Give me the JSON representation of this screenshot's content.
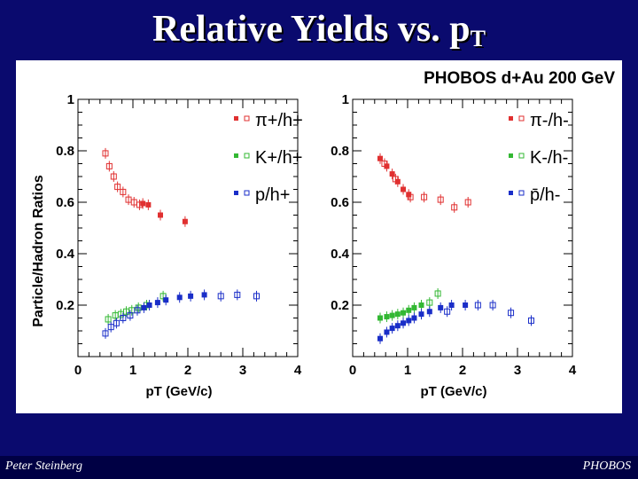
{
  "slide": {
    "title_main": "Relative Yields vs. p",
    "title_sub": "T",
    "footer_left": "Peter Steinberg",
    "footer_right": "PHOBOS"
  },
  "chart_data": {
    "type": "scatter",
    "caption": "PHOBOS d+Au 200 GeV",
    "ylabel": "Particle/Hadron Ratios",
    "panels": [
      {
        "name": "positive",
        "xlabel": "pT (GeV/c)",
        "xlim": [
          0,
          4
        ],
        "ylim": [
          0,
          1
        ],
        "xticks": [
          "0",
          "1",
          "2",
          "3",
          "4"
        ],
        "yticks": [
          "0.2",
          "0.4",
          "0.6",
          "0.8",
          "1"
        ],
        "legend": [
          {
            "label": "π+/h+",
            "color": "#e03030"
          },
          {
            "label": "K+/h+",
            "color": "#33b833"
          },
          {
            "label": "p/h+",
            "color": "#1a2ec8"
          }
        ],
        "series": [
          {
            "name": "π+/h+",
            "color": "#e03030",
            "filled": false,
            "x": [
              0.5,
              0.57,
              0.65,
              0.72,
              0.82,
              0.92,
              1.02,
              1.12
            ],
            "y": [
              0.79,
              0.74,
              0.7,
              0.66,
              0.64,
              0.61,
              0.6,
              0.59
            ]
          },
          {
            "name": "π+/h+",
            "color": "#e03030",
            "filled": true,
            "x": [
              1.18,
              1.28,
              1.5,
              1.95
            ],
            "y": [
              0.595,
              0.59,
              0.55,
              0.525
            ]
          },
          {
            "name": "K+/h+",
            "color": "#33b833",
            "filled": false,
            "x": [
              0.55,
              0.68,
              0.78,
              0.88,
              0.98,
              1.1,
              1.25,
              1.55
            ],
            "y": [
              0.145,
              0.16,
              0.165,
              0.175,
              0.18,
              0.19,
              0.2,
              0.235
            ]
          },
          {
            "name": "p/h+",
            "color": "#1a2ec8",
            "filled": true,
            "x": [
              1.2,
              1.3,
              1.45,
              1.6,
              1.85,
              2.05,
              2.3
            ],
            "y": [
              0.19,
              0.2,
              0.21,
              0.22,
              0.23,
              0.235,
              0.24
            ]
          },
          {
            "name": "p/h+",
            "color": "#1a2ec8",
            "filled": false,
            "x": [
              0.5,
              0.6,
              0.7,
              0.82,
              0.95,
              1.08,
              2.6,
              2.9,
              3.25
            ],
            "y": [
              0.09,
              0.115,
              0.13,
              0.15,
              0.16,
              0.18,
              0.235,
              0.24,
              0.235
            ]
          }
        ]
      },
      {
        "name": "negative",
        "xlabel": "pT (GeV/c)",
        "xlim": [
          0,
          4
        ],
        "ylim": [
          0,
          1
        ],
        "xticks": [
          "0",
          "1",
          "2",
          "3",
          "4"
        ],
        "yticks": [
          "0.2",
          "0.4",
          "0.6",
          "0.8",
          "1"
        ],
        "legend": [
          {
            "label": "π-/h-",
            "color": "#e03030"
          },
          {
            "label": "K-/h-",
            "color": "#33b833"
          },
          {
            "label": "p̄/h-",
            "color": "#1a2ec8"
          }
        ],
        "series": [
          {
            "name": "π-/h-",
            "color": "#e03030",
            "filled": true,
            "x": [
              0.5,
              0.62,
              0.72,
              0.82,
              0.92,
              1.02
            ],
            "y": [
              0.77,
              0.74,
              0.71,
              0.68,
              0.65,
              0.63
            ]
          },
          {
            "name": "π-/h-",
            "color": "#e03030",
            "filled": false,
            "x": [
              0.58,
              0.78,
              1.05,
              1.3,
              1.6,
              1.85,
              2.1
            ],
            "y": [
              0.75,
              0.69,
              0.62,
              0.62,
              0.61,
              0.58,
              0.6
            ]
          },
          {
            "name": "K-/h-",
            "color": "#33b833",
            "filled": true,
            "x": [
              0.5,
              0.62,
              0.72,
              0.82,
              0.92,
              1.02,
              1.12,
              1.25
            ],
            "y": [
              0.15,
              0.155,
              0.16,
              0.165,
              0.17,
              0.18,
              0.19,
              0.2
            ]
          },
          {
            "name": "K-/h-",
            "color": "#33b833",
            "filled": false,
            "x": [
              1.4,
              1.55
            ],
            "y": [
              0.21,
              0.245
            ]
          },
          {
            "name": "p̄/h-",
            "color": "#1a2ec8",
            "filled": true,
            "x": [
              0.5,
              0.62,
              0.72,
              0.82,
              0.92,
              1.02,
              1.12,
              1.25,
              1.4,
              1.6,
              1.8,
              2.05
            ],
            "y": [
              0.07,
              0.095,
              0.11,
              0.12,
              0.13,
              0.14,
              0.15,
              0.165,
              0.175,
              0.19,
              0.2,
              0.2
            ]
          },
          {
            "name": "p̄/h-",
            "color": "#1a2ec8",
            "filled": false,
            "x": [
              1.72,
              2.28,
              2.55,
              2.88,
              3.25
            ],
            "y": [
              0.175,
              0.2,
              0.2,
              0.17,
              0.14
            ]
          }
        ]
      }
    ]
  }
}
